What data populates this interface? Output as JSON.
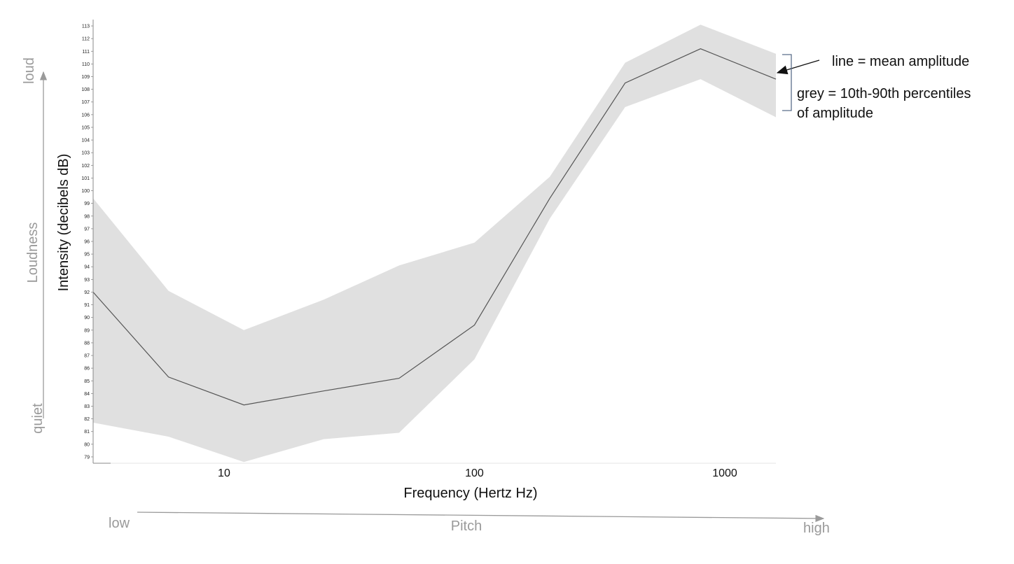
{
  "chart_data": {
    "type": "area",
    "x_scale": "log",
    "x": [
      3,
      6,
      12,
      25,
      50,
      100,
      200,
      400,
      800,
      1600
    ],
    "series": [
      {
        "name": "mean amplitude",
        "values": [
          92.0,
          85.3,
          83.1,
          84.2,
          85.2,
          89.4,
          99.4,
          108.5,
          111.2,
          108.8
        ]
      }
    ],
    "band": {
      "lower": [
        81.7,
        80.6,
        78.6,
        80.4,
        80.9,
        86.7,
        97.8,
        106.6,
        108.8,
        105.8
      ],
      "upper": [
        99.4,
        92.1,
        89.0,
        91.4,
        94.1,
        95.9,
        101.1,
        110.1,
        113.1,
        110.8
      ]
    },
    "xticks": [
      "10",
      "100",
      "1000"
    ],
    "yticks": [
      "79",
      "80",
      "81",
      "82",
      "83",
      "84",
      "85",
      "86",
      "87",
      "88",
      "89",
      "90",
      "91",
      "92",
      "93",
      "94",
      "95",
      "96",
      "97",
      "98",
      "99",
      "100",
      "101",
      "102",
      "103",
      "104",
      "105",
      "106",
      "107",
      "108",
      "109",
      "110",
      "111",
      "112",
      "113"
    ],
    "ylim": [
      78.5,
      113.5
    ],
    "xlabel": "Frequency (Hertz Hz)",
    "ylabel": "Intensity  (decibels dB)",
    "grid": false
  },
  "outer_labels": {
    "loud": "loud",
    "loudness": "Loudness",
    "quiet": "quiet",
    "low": "low",
    "pitch": "Pitch",
    "high": "high"
  },
  "annotations": {
    "line_label": "line = mean amplitude",
    "grey_label_1": "grey = 10th-90th percentiles",
    "grey_label_2": "of amplitude"
  },
  "colors": {
    "band": "#e0e0e0",
    "line": "#555555",
    "outer_text": "#9a9a9a",
    "bracket": "#5a6e8a"
  }
}
